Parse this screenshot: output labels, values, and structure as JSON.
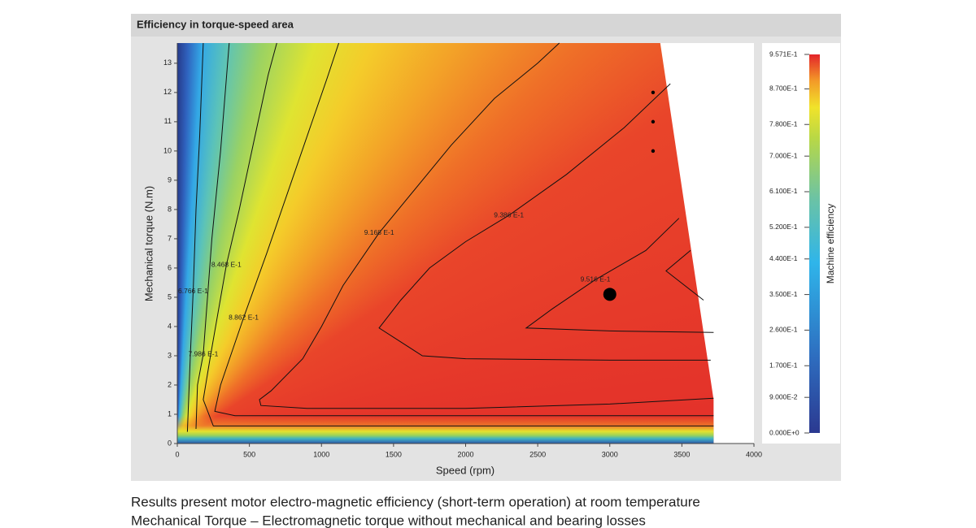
{
  "panel_title": "Efficiency in torque-speed area",
  "chart_data": {
    "type": "contour",
    "xlabel": "Speed (rpm)",
    "ylabel": "Mechanical torque (N.m)",
    "xlim": [
      0,
      4000
    ],
    "xticks": [
      0,
      500,
      1000,
      1500,
      2000,
      2500,
      3000,
      3500,
      4000
    ],
    "ylim": [
      0,
      13.69
    ],
    "yticks": [
      0,
      1,
      2,
      3,
      4,
      5,
      6,
      7,
      8,
      9,
      10,
      11,
      12,
      13
    ],
    "region": {
      "x": [
        0,
        3350,
        3720,
        3720,
        0
      ],
      "y": [
        13.69,
        13.69,
        1.5,
        0,
        0
      ]
    },
    "contours": [
      {
        "level": 0.9516,
        "label": "9.516 E-1",
        "x": [
          3720,
          3000,
          2420,
          2600,
          2900,
          3250,
          3480,
          null,
          3560,
          3390,
          3650
        ],
        "y": [
          3.8,
          3.85,
          3.95,
          4.6,
          5.6,
          6.6,
          7.7,
          null,
          6.6,
          5.9,
          4.9
        ]
      },
      {
        "level": 0.9386,
        "label": "9.386 E-1",
        "x": [
          3700,
          3000,
          2000,
          1700,
          1400,
          1550,
          1750,
          2000,
          2300,
          2700,
          3100,
          3420
        ],
        "y": [
          2.85,
          2.85,
          2.9,
          3.0,
          3.95,
          4.9,
          6.0,
          6.9,
          7.8,
          9.2,
          10.8,
          12.3
        ]
      },
      {
        "level": 0.9168,
        "label": "9.168 E-1",
        "x": [
          3720,
          3000,
          2000,
          900,
          580,
          570,
          650,
          870,
          1000,
          1150,
          1400,
          1700,
          1900,
          2200,
          2500,
          2650
        ],
        "y": [
          1.55,
          1.35,
          1.2,
          1.2,
          1.3,
          1.5,
          1.8,
          2.9,
          4.0,
          5.4,
          7.2,
          9.0,
          10.2,
          11.8,
          13.0,
          13.69
        ]
      },
      {
        "level": 0.8862,
        "label": "8.862 E-1",
        "x": [
          3720,
          2000,
          400,
          260,
          300,
          460,
          620,
          760,
          900,
          1040,
          1120
        ],
        "y": [
          0.95,
          0.95,
          0.95,
          1.1,
          2.0,
          4.3,
          6.5,
          8.5,
          10.5,
          12.5,
          13.69
        ]
      },
      {
        "level": 0.8468,
        "label": "8.468 E-1",
        "x": [
          3720,
          1000,
          250,
          180,
          230,
          340,
          430,
          530,
          630,
          690
        ],
        "y": [
          0.6,
          0.6,
          0.6,
          1.5,
          3.0,
          6.1,
          8.0,
          10.3,
          12.6,
          13.69
        ]
      },
      {
        "level": 0.7986,
        "label": "7.986 E-1",
        "x": [
          130,
          140,
          180,
          240,
          300,
          360
        ],
        "y": [
          0.5,
          2,
          3.05,
          7,
          10,
          13.69
        ]
      },
      {
        "level": 0.6766,
        "label": "6.766 E-1",
        "x": [
          70,
          90,
          110,
          130,
          155,
          180
        ],
        "y": [
          0.4,
          3,
          5.2,
          8,
          10.5,
          13.69
        ]
      }
    ],
    "points": {
      "x": [
        3300,
        3300,
        3300
      ],
      "y": [
        12,
        11,
        10
      ]
    },
    "operating_point": {
      "x": 3000,
      "y": 5.1
    },
    "colorbar": {
      "label": "Machine efficiency",
      "lim": [
        0,
        0.9571
      ],
      "ticks": [
        {
          "value": 0,
          "label": "0.000E+0"
        },
        {
          "value": 0.09,
          "label": "9.000E-2"
        },
        {
          "value": 0.17,
          "label": "1.700E-1"
        },
        {
          "value": 0.26,
          "label": "2.600E-1"
        },
        {
          "value": 0.35,
          "label": "3.500E-1"
        },
        {
          "value": 0.44,
          "label": "4.400E-1"
        },
        {
          "value": 0.52,
          "label": "5.200E-1"
        },
        {
          "value": 0.61,
          "label": "6.100E-1"
        },
        {
          "value": 0.7,
          "label": "7.000E-1"
        },
        {
          "value": 0.78,
          "label": "7.800E-1"
        },
        {
          "value": 0.87,
          "label": "8.700E-1"
        },
        {
          "value": 0.9571,
          "label": "9.571E-1"
        }
      ]
    }
  },
  "caption": [
    "Results present motor electro-magnetic efficiency (short-term operation) at room temperature",
    "Mechanical Torque – Electromagnetic torque without mechanical and bearing losses"
  ]
}
